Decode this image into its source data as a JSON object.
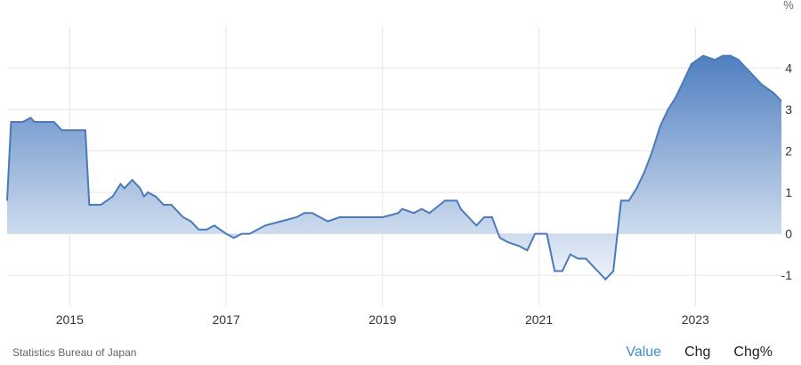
{
  "chart_data": {
    "type": "area",
    "unit_label": "%",
    "y_ticks": [
      -1,
      0,
      1,
      2,
      3,
      4
    ],
    "x_ticks": [
      "2015",
      "2017",
      "2019",
      "2021",
      "2023"
    ],
    "x_tick_values": [
      2015,
      2017,
      2019,
      2021,
      2023
    ],
    "xlim": [
      2014.2,
      2024.1
    ],
    "ylim": [
      -1.75,
      5.0
    ],
    "grid": true,
    "colors": {
      "line": "#4a7ab8",
      "fill_top": "#4f7fc0",
      "fill_bottom": "#eef3fa",
      "grid": "#e6e6e6"
    },
    "series": [
      {
        "x": [
          2014.2,
          2014.25,
          2014.4,
          2014.5,
          2014.55,
          2014.6,
          2014.8,
          2014.9,
          2015.0,
          2015.1,
          2015.2,
          2015.25,
          2015.4,
          2015.55,
          2015.65,
          2015.7,
          2015.8,
          2015.9,
          2015.95,
          2016.0,
          2016.1,
          2016.2,
          2016.3,
          2016.45,
          2016.55,
          2016.65,
          2016.75,
          2016.85,
          2017.0,
          2017.1,
          2017.2,
          2017.3,
          2017.5,
          2017.7,
          2017.9,
          2018.0,
          2018.1,
          2018.3,
          2018.45,
          2018.6,
          2018.8,
          2018.95,
          2019.0,
          2019.2,
          2019.25,
          2019.4,
          2019.5,
          2019.6,
          2019.8,
          2019.95,
          2020.0,
          2020.1,
          2020.2,
          2020.3,
          2020.4,
          2020.5,
          2020.6,
          2020.75,
          2020.85,
          2020.95,
          2021.1,
          2021.2,
          2021.3,
          2021.4,
          2021.5,
          2021.6,
          2021.7,
          2021.75,
          2021.85,
          2021.95,
          2022.05,
          2022.15,
          2022.25,
          2022.35,
          2022.45,
          2022.55,
          2022.65,
          2022.75,
          2022.85,
          2022.95,
          2023.1,
          2023.25,
          2023.35,
          2023.45,
          2023.55,
          2023.65,
          2023.75,
          2023.85,
          2024.0,
          2024.1
        ],
        "y": [
          0.8,
          2.7,
          2.7,
          2.8,
          2.7,
          2.7,
          2.7,
          2.5,
          2.5,
          2.5,
          2.5,
          0.7,
          0.7,
          0.9,
          1.2,
          1.1,
          1.3,
          1.1,
          0.9,
          1.0,
          0.9,
          0.7,
          0.7,
          0.4,
          0.3,
          0.1,
          0.1,
          0.2,
          0.0,
          -0.1,
          0.0,
          0.0,
          0.2,
          0.3,
          0.4,
          0.5,
          0.5,
          0.3,
          0.4,
          0.4,
          0.4,
          0.4,
          0.4,
          0.5,
          0.6,
          0.5,
          0.6,
          0.5,
          0.8,
          0.8,
          0.6,
          0.4,
          0.2,
          0.4,
          0.4,
          -0.1,
          -0.2,
          -0.3,
          -0.4,
          0.0,
          0.0,
          -0.9,
          -0.9,
          -0.5,
          -0.6,
          -0.6,
          -0.8,
          -0.9,
          -1.1,
          -0.9,
          0.8,
          0.8,
          1.1,
          1.5,
          2.0,
          2.6,
          3.0,
          3.3,
          3.7,
          4.1,
          4.3,
          4.2,
          4.3,
          4.3,
          4.2,
          4.0,
          3.8,
          3.6,
          3.4,
          3.2
        ]
      }
    ]
  },
  "footer": {
    "source": "Statistics Bureau of Japan"
  },
  "tabs": [
    {
      "label": "Value",
      "active": true
    },
    {
      "label": "Chg",
      "active": false
    },
    {
      "label": "Chg%",
      "active": false
    }
  ]
}
